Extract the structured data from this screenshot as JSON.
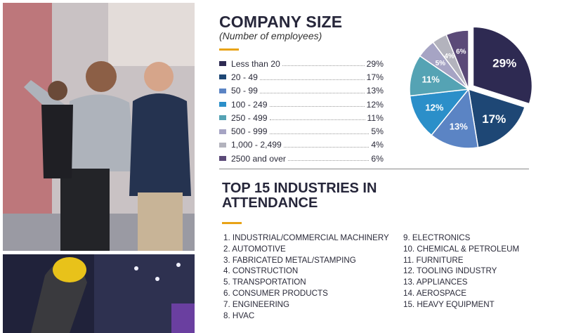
{
  "company_size": {
    "title": "COMPANY SIZE",
    "subtitle": "(Number of employees)",
    "legend": [
      {
        "label": "Less than 20",
        "value": "29%",
        "color": "#2e2a52"
      },
      {
        "label": "20 - 49",
        "value": "17%",
        "color": "#1e4775"
      },
      {
        "label": "50 - 99",
        "value": "13%",
        "color": "#5b84c4"
      },
      {
        "label": "100 - 249",
        "value": "12%",
        "color": "#2b8fc9"
      },
      {
        "label": "250 - 499",
        "value": "11%",
        "color": "#55a3b4"
      },
      {
        "label": "500 - 999",
        "value": "5%",
        "color": "#a6a4c4"
      },
      {
        "label": "1,000 - 2,499",
        "value": "4%",
        "color": "#b3b3bd"
      },
      {
        "label": "2500 and over",
        "value": "6%",
        "color": "#5b4a78"
      }
    ]
  },
  "chart_data": {
    "type": "pie",
    "title": "COMPANY SIZE",
    "categories": [
      "Less than 20",
      "20 - 49",
      "50 - 99",
      "100 - 249",
      "250 - 499",
      "500 - 999",
      "1,000 - 2,499",
      "2500 and over"
    ],
    "values": [
      29,
      17,
      13,
      12,
      11,
      5,
      4,
      6
    ],
    "labels": [
      "29%",
      "17%",
      "13%",
      "12%",
      "11%",
      "5%",
      "4%",
      "6%"
    ],
    "colors": [
      "#2e2a52",
      "#1e4775",
      "#5b84c4",
      "#2b8fc9",
      "#55a3b4",
      "#a6a4c4",
      "#b3b3bd",
      "#5b4a78"
    ],
    "label_colors": [
      "#ffffff",
      "#ffffff",
      "#ffffff",
      "#ffffff",
      "#ffffff",
      "#ffffff",
      "#ffffff",
      "#ffffff"
    ],
    "exploded": [
      0
    ]
  },
  "industries": {
    "title": "TOP 15 INDUSTRIES IN ATTENDANCE",
    "left": [
      {
        "num": "1.",
        "name": "INDUSTRIAL/COMMERCIAL MACHINERY"
      },
      {
        "num": "2.",
        "name": "AUTOMOTIVE"
      },
      {
        "num": "3.",
        "name": "FABRICATED METAL/STAMPING"
      },
      {
        "num": "4.",
        "name": "CONSTRUCTION"
      },
      {
        "num": "5.",
        "name": "TRANSPORTATION"
      },
      {
        "num": "6.",
        "name": "CONSUMER PRODUCTS"
      },
      {
        "num": "7.",
        "name": "ENGINEERING"
      },
      {
        "num": "8.",
        "name": "HVAC"
      }
    ],
    "right": [
      {
        "num": "9.",
        "name": "ELECTRONICS"
      },
      {
        "num": "10.",
        "name": "CHEMICAL & PETROLEUM"
      },
      {
        "num": "11.",
        "name": "FURNITURE"
      },
      {
        "num": "12.",
        "name": "TOOLING INDUSTRY"
      },
      {
        "num": "13.",
        "name": "APPLIANCES"
      },
      {
        "num": "14.",
        "name": "AEROSPACE"
      },
      {
        "num": "15.",
        "name": "HEAVY EQUIPMENT"
      }
    ]
  },
  "accent_color": "#e8a317"
}
